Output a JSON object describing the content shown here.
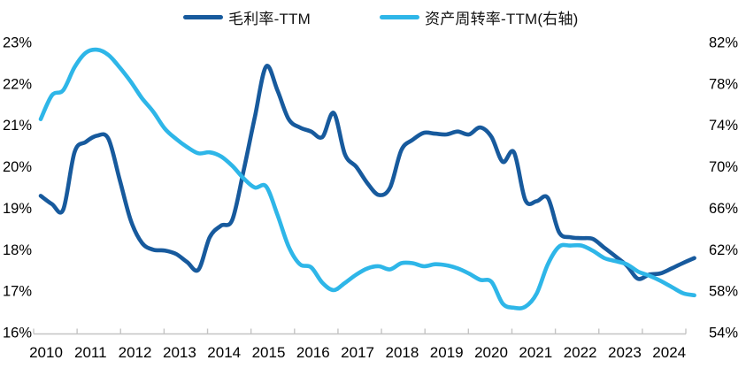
{
  "legend": [
    {
      "label": "毛利率-TTM",
      "color": "#175A9D"
    },
    {
      "label": "资产周转率-TTM(右轴)",
      "color": "#2EB6E8"
    }
  ],
  "chart_data": {
    "type": "line",
    "title": "",
    "x": {
      "start": "2010Q1",
      "frequency": "quarterly",
      "points": 59
    },
    "x_tick_labels": [
      "2010",
      "2011",
      "2012",
      "2013",
      "2014",
      "2015",
      "2016",
      "2017",
      "2018",
      "2019",
      "2020",
      "2021",
      "2022",
      "2023",
      "2024"
    ],
    "left_axis": {
      "labels": [
        "23%",
        "22%",
        "21%",
        "20%",
        "19%",
        "18%",
        "17%",
        "16%"
      ],
      "max": 23,
      "min": 16,
      "unit": "%"
    },
    "right_axis": {
      "labels": [
        "82%",
        "78%",
        "74%",
        "70%",
        "66%",
        "62%",
        "58%",
        "54%"
      ],
      "max": 82,
      "min": 54,
      "unit": "%"
    },
    "grid": false,
    "legend_position": "top",
    "series": [
      {
        "name": "毛利率-TTM",
        "axis": "left",
        "color": "#175A9D",
        "values": [
          19.3,
          19.1,
          18.97,
          20.35,
          20.6,
          20.75,
          20.68,
          19.7,
          18.7,
          18.16,
          18.0,
          17.98,
          17.9,
          17.7,
          17.52,
          18.3,
          18.58,
          18.72,
          19.9,
          21.2,
          22.42,
          21.85,
          21.15,
          20.95,
          20.85,
          20.72,
          21.3,
          20.3,
          20.0,
          19.6,
          19.32,
          19.5,
          20.4,
          20.65,
          20.82,
          20.8,
          20.78,
          20.85,
          20.78,
          20.95,
          20.72,
          20.12,
          20.35,
          19.2,
          19.17,
          19.25,
          18.42,
          18.3,
          18.28,
          18.26,
          18.05,
          17.84,
          17.62,
          17.3,
          17.4,
          17.43,
          17.55,
          17.68,
          17.8
        ]
      },
      {
        "name": "资产周转率-TTM(右轴)",
        "axis": "right",
        "color": "#2EB6E8",
        "values": [
          74.6,
          76.9,
          77.4,
          79.6,
          81.0,
          81.3,
          80.8,
          79.6,
          78.2,
          76.6,
          75.3,
          73.7,
          72.7,
          71.9,
          71.3,
          71.4,
          71.0,
          70.1,
          68.9,
          68.0,
          68.1,
          65.4,
          62.3,
          60.6,
          60.3,
          58.8,
          58.1,
          58.8,
          59.6,
          60.2,
          60.4,
          60.1,
          60.7,
          60.7,
          60.4,
          60.6,
          60.5,
          60.2,
          59.7,
          59.1,
          58.9,
          56.8,
          56.4,
          56.5,
          57.75,
          60.6,
          62.3,
          62.4,
          62.4,
          61.9,
          61.2,
          60.9,
          60.6,
          59.9,
          59.5,
          59.0,
          58.4,
          57.8,
          57.6
        ]
      }
    ],
    "axis_color": "#c4c4c4",
    "text_color": "#000000"
  }
}
